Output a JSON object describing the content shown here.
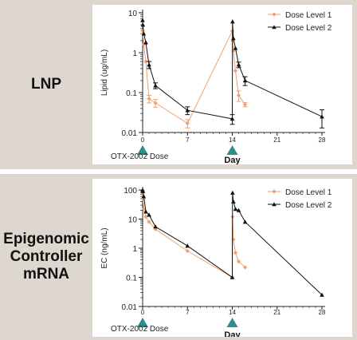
{
  "colors": {
    "dose_level_1": "#f0a070",
    "dose_level_2": "#111111",
    "marker": "#2c8f8f",
    "band": "#ddd7cf"
  },
  "panels": [
    {
      "label": "LNP"
    },
    {
      "label": "Epigenomic\nController\nmRNA"
    }
  ],
  "chart_data": [
    {
      "type": "line",
      "ylabel": "Lipid (ug/mL)",
      "yscale": "log",
      "ylim": [
        0.01,
        10
      ],
      "yticks": [
        0.01,
        0.1,
        1,
        10
      ],
      "ytick_labels": [
        "0.01",
        "0.1",
        "1",
        "10"
      ],
      "xlim": [
        0,
        28
      ],
      "xticks": [
        0,
        7,
        14,
        21,
        28
      ],
      "xtick_labels": [
        "0",
        "7",
        "14",
        "21",
        "28"
      ],
      "xlabel": "Day",
      "dose_label": "OTX-2002 Dose",
      "dose_days": [
        0,
        14
      ],
      "legend_position": "top-right",
      "series": [
        {
          "name": "Dose Level 1",
          "x": [
            0,
            0.04,
            0.17,
            0.5,
            1,
            2,
            7,
            14,
            14.04,
            14.17,
            14.5,
            15,
            16
          ],
          "y": [
            3.5,
            3.0,
            1.6,
            0.6,
            0.07,
            0.055,
            0.017,
            3.5,
            2.0,
            1.1,
            0.35,
            0.085,
            0.05
          ],
          "err": [
            0,
            0,
            0,
            0,
            0.015,
            0.012,
            0.004,
            0,
            0,
            0,
            0,
            0.025,
            0.006
          ]
        },
        {
          "name": "Dose Level 2",
          "x": [
            0,
            0.04,
            0.17,
            0.5,
            1,
            2,
            7,
            14,
            14.04,
            14.17,
            14.5,
            15,
            16,
            28
          ],
          "y": [
            6.5,
            5.0,
            3.0,
            1.8,
            0.5,
            0.15,
            0.036,
            0.022,
            6.0,
            2.3,
            1.3,
            0.5,
            0.2,
            0.025
          ],
          "err": [
            0,
            0,
            0,
            0,
            0.1,
            0.025,
            0.008,
            0.006,
            0,
            0,
            0,
            0.08,
            0.05,
            0.012
          ]
        }
      ]
    },
    {
      "type": "line",
      "ylabel": "EC (ng/mL)",
      "yscale": "log",
      "ylim": [
        0.01,
        100
      ],
      "yticks": [
        0.01,
        0.1,
        1,
        10,
        100
      ],
      "ytick_labels": [
        "0.01",
        "0.1",
        "1",
        "10",
        "100"
      ],
      "xlim": [
        0,
        28
      ],
      "xticks": [
        0,
        7,
        14,
        21,
        28
      ],
      "xtick_labels": [
        "0",
        "7",
        "14",
        "21",
        "28"
      ],
      "xlabel": "Day",
      "dose_label": "OTX-2002 Dose",
      "dose_days": [
        0,
        14
      ],
      "legend_position": "top-right",
      "series": [
        {
          "name": "Dose Level 1",
          "x": [
            0,
            0.04,
            0.17,
            0.5,
            1,
            2,
            7,
            14,
            14.04,
            14.17,
            14.5,
            15,
            16
          ],
          "y": [
            80,
            50,
            22,
            12,
            8,
            4.5,
            0.8,
            0.1,
            12,
            2.0,
            0.7,
            0.35,
            0.22
          ],
          "err": [
            0,
            0,
            0,
            0,
            0,
            0,
            0,
            0,
            0,
            0,
            0,
            0,
            0
          ]
        },
        {
          "name": "Dose Level 2",
          "x": [
            0,
            0.04,
            0.17,
            0.5,
            1,
            2,
            7,
            14,
            14.04,
            14.17,
            14.5,
            15,
            16,
            28
          ],
          "y": [
            100,
            90,
            60,
            18,
            14,
            5.5,
            1.2,
            0.1,
            80,
            40,
            22,
            20,
            8,
            0.025
          ],
          "err": [
            0,
            0,
            0,
            0,
            0,
            0,
            0,
            0,
            0,
            0,
            0,
            0,
            0,
            0
          ]
        }
      ]
    }
  ]
}
